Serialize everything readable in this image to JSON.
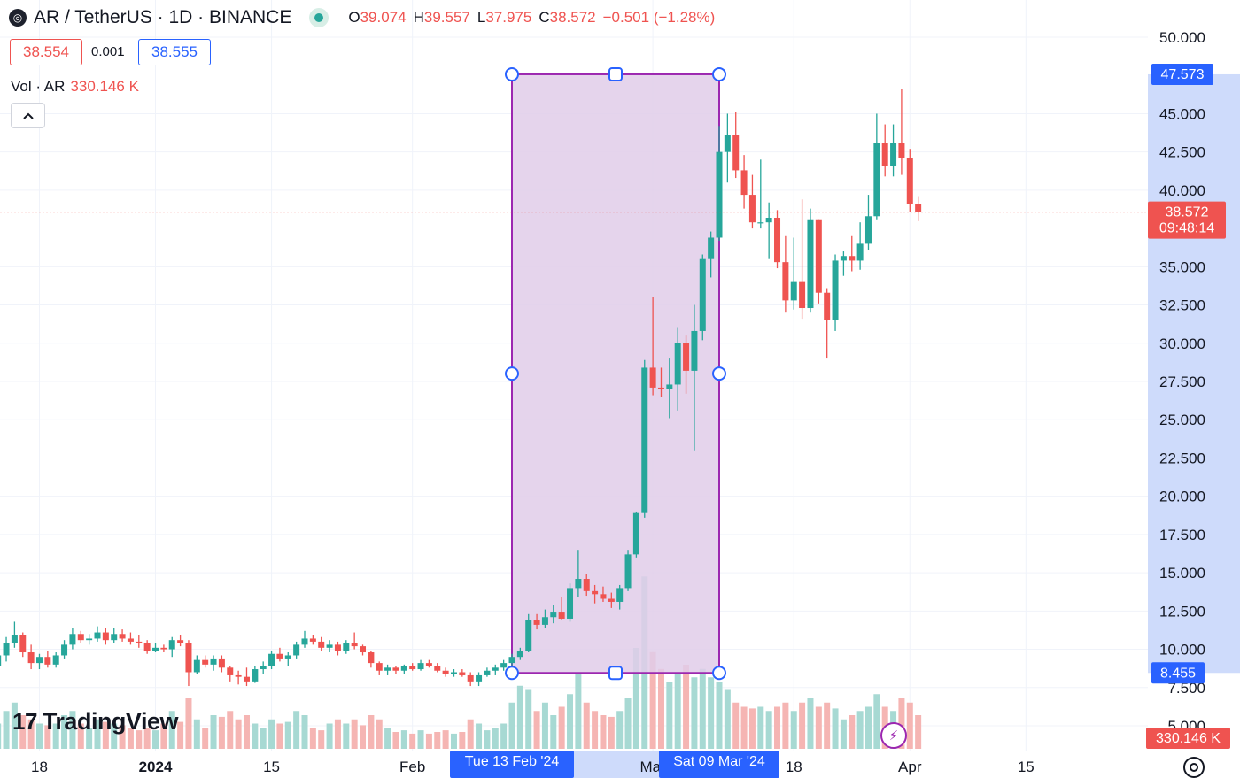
{
  "header": {
    "symbol": "AR / TetherUS · 1D · BINANCE",
    "open_label": "O",
    "open": "39.074",
    "high_label": "H",
    "high": "39.557",
    "low_label": "L",
    "low": "37.975",
    "close_label": "C",
    "close": "38.572",
    "change": "−0.501 (−1.28%)",
    "bid": "38.554",
    "spread": "0.001",
    "ask": "38.555",
    "volume_label": "Vol · AR",
    "volume_value": "330.146 K",
    "logo_icon": "exchange-logo-icon",
    "status_icon": "market-open-dot-icon",
    "collapse_icon": "chevron-up-icon"
  },
  "branding": {
    "name": "TradingView",
    "mark": "17"
  },
  "colors": {
    "up": "#26a69a",
    "down": "#ef5350",
    "up_volume": "#a7d9d3",
    "down_volume": "#f5b5b3",
    "range_fill": "#e1cce9",
    "range_border": "#9c27b0",
    "axis_highlight": "#c9d7fb",
    "label_blue": "#2962ff"
  },
  "chart_data": {
    "type": "candlestick",
    "symbol": "AR / TetherUS",
    "interval": "1D",
    "exchange": "BINANCE",
    "ylim": [
      5,
      52
    ],
    "y_ticks": [
      "50.000",
      "45.000",
      "42.500",
      "40.000",
      "35.000",
      "32.500",
      "30.000",
      "27.500",
      "25.000",
      "22.500",
      "20.000",
      "17.500",
      "15.000",
      "12.500",
      "10.000",
      "7.500",
      "5.000"
    ],
    "x_ticks": [
      "18",
      "2024",
      "15",
      "Feb",
      "Mar",
      "18",
      "Apr",
      "15"
    ],
    "x_tick_dates": [
      "2023-12-18",
      "2024-01-01",
      "2024-01-15",
      "2024-02-01",
      "2024-03-01",
      "2024-03-18",
      "2024-04-01",
      "2024-04-15"
    ],
    "last_price": {
      "value": 38.572,
      "label": "38.572",
      "countdown": "09:48:14"
    },
    "last_volume_label": "330.146 K",
    "date_range": {
      "start_label": "Tue 13 Feb '24",
      "end_label": "Sat 09 Mar '24",
      "start_date": "2024-02-13",
      "end_date": "2024-03-09",
      "high_label": "47.573",
      "low_label": "8.455",
      "high": 47.573,
      "low": 8.455
    },
    "candles": [
      {
        "d": "2023-12-13",
        "o": 8.9,
        "h": 9.9,
        "l": 8.4,
        "c": 9.6,
        "v": 30
      },
      {
        "d": "2023-12-14",
        "o": 9.6,
        "h": 10.8,
        "l": 9.2,
        "c": 10.4,
        "v": 45
      },
      {
        "d": "2023-12-15",
        "o": 10.4,
        "h": 11.8,
        "l": 10.1,
        "c": 10.9,
        "v": 55
      },
      {
        "d": "2023-12-16",
        "o": 10.9,
        "h": 11.1,
        "l": 9.5,
        "c": 9.8,
        "v": 40
      },
      {
        "d": "2023-12-17",
        "o": 9.8,
        "h": 10.3,
        "l": 8.7,
        "c": 9.1,
        "v": 35
      },
      {
        "d": "2023-12-18",
        "o": 9.1,
        "h": 9.7,
        "l": 8.7,
        "c": 9.5,
        "v": 30
      },
      {
        "d": "2023-12-19",
        "o": 9.5,
        "h": 9.9,
        "l": 8.8,
        "c": 9.0,
        "v": 28
      },
      {
        "d": "2023-12-20",
        "o": 9.0,
        "h": 9.8,
        "l": 8.8,
        "c": 9.6,
        "v": 30
      },
      {
        "d": "2023-12-21",
        "o": 9.6,
        "h": 10.6,
        "l": 9.4,
        "c": 10.3,
        "v": 40
      },
      {
        "d": "2023-12-22",
        "o": 10.3,
        "h": 11.4,
        "l": 10.0,
        "c": 11.0,
        "v": 45
      },
      {
        "d": "2023-12-23",
        "o": 11.0,
        "h": 11.2,
        "l": 10.4,
        "c": 10.6,
        "v": 30
      },
      {
        "d": "2023-12-24",
        "o": 10.6,
        "h": 11.0,
        "l": 10.3,
        "c": 10.7,
        "v": 25
      },
      {
        "d": "2023-12-25",
        "o": 10.7,
        "h": 11.5,
        "l": 10.5,
        "c": 11.1,
        "v": 35
      },
      {
        "d": "2023-12-26",
        "o": 11.1,
        "h": 11.4,
        "l": 10.3,
        "c": 10.6,
        "v": 32
      },
      {
        "d": "2023-12-27",
        "o": 10.6,
        "h": 11.4,
        "l": 10.4,
        "c": 11.0,
        "v": 30
      },
      {
        "d": "2023-12-28",
        "o": 11.0,
        "h": 11.3,
        "l": 10.5,
        "c": 10.7,
        "v": 28
      },
      {
        "d": "2023-12-29",
        "o": 10.7,
        "h": 11.1,
        "l": 10.3,
        "c": 10.5,
        "v": 25
      },
      {
        "d": "2023-12-30",
        "o": 10.5,
        "h": 10.9,
        "l": 10.1,
        "c": 10.4,
        "v": 22
      },
      {
        "d": "2023-12-31",
        "o": 10.4,
        "h": 10.6,
        "l": 9.7,
        "c": 9.9,
        "v": 25
      },
      {
        "d": "2024-01-01",
        "o": 9.9,
        "h": 10.4,
        "l": 9.8,
        "c": 10.1,
        "v": 22
      },
      {
        "d": "2024-01-02",
        "o": 10.1,
        "h": 10.3,
        "l": 9.8,
        "c": 10.0,
        "v": 30
      },
      {
        "d": "2024-01-03",
        "o": 10.0,
        "h": 10.8,
        "l": 9.5,
        "c": 10.6,
        "v": 45
      },
      {
        "d": "2024-01-04",
        "o": 10.6,
        "h": 10.9,
        "l": 10.2,
        "c": 10.4,
        "v": 32
      },
      {
        "d": "2024-01-05",
        "o": 10.4,
        "h": 10.6,
        "l": 7.6,
        "c": 8.5,
        "v": 60
      },
      {
        "d": "2024-01-06",
        "o": 8.5,
        "h": 9.6,
        "l": 8.4,
        "c": 9.3,
        "v": 35
      },
      {
        "d": "2024-01-07",
        "o": 9.3,
        "h": 9.6,
        "l": 8.8,
        "c": 9.0,
        "v": 25
      },
      {
        "d": "2024-01-08",
        "o": 9.0,
        "h": 9.6,
        "l": 8.6,
        "c": 9.4,
        "v": 40
      },
      {
        "d": "2024-01-09",
        "o": 9.4,
        "h": 9.6,
        "l": 8.5,
        "c": 8.8,
        "v": 38
      },
      {
        "d": "2024-01-10",
        "o": 8.8,
        "h": 8.9,
        "l": 7.9,
        "c": 8.3,
        "v": 45
      },
      {
        "d": "2024-01-11",
        "o": 8.3,
        "h": 8.6,
        "l": 7.7,
        "c": 8.2,
        "v": 35
      },
      {
        "d": "2024-01-12",
        "o": 8.2,
        "h": 8.8,
        "l": 7.6,
        "c": 7.9,
        "v": 40
      },
      {
        "d": "2024-01-13",
        "o": 7.9,
        "h": 8.9,
        "l": 7.8,
        "c": 8.7,
        "v": 30
      },
      {
        "d": "2024-01-14",
        "o": 8.7,
        "h": 9.2,
        "l": 8.4,
        "c": 8.9,
        "v": 25
      },
      {
        "d": "2024-01-15",
        "o": 8.9,
        "h": 9.9,
        "l": 8.7,
        "c": 9.7,
        "v": 35
      },
      {
        "d": "2024-01-16",
        "o": 9.7,
        "h": 10.1,
        "l": 9.2,
        "c": 9.4,
        "v": 30
      },
      {
        "d": "2024-01-17",
        "o": 9.4,
        "h": 9.8,
        "l": 8.9,
        "c": 9.6,
        "v": 32
      },
      {
        "d": "2024-01-18",
        "o": 9.6,
        "h": 10.5,
        "l": 9.4,
        "c": 10.3,
        "v": 45
      },
      {
        "d": "2024-01-19",
        "o": 10.3,
        "h": 11.2,
        "l": 10.1,
        "c": 10.7,
        "v": 40
      },
      {
        "d": "2024-01-20",
        "o": 10.7,
        "h": 10.9,
        "l": 10.3,
        "c": 10.5,
        "v": 25
      },
      {
        "d": "2024-01-21",
        "o": 10.5,
        "h": 10.8,
        "l": 9.9,
        "c": 10.1,
        "v": 22
      },
      {
        "d": "2024-01-22",
        "o": 10.1,
        "h": 10.6,
        "l": 9.8,
        "c": 10.3,
        "v": 30
      },
      {
        "d": "2024-01-23",
        "o": 10.3,
        "h": 10.5,
        "l": 9.6,
        "c": 9.9,
        "v": 35
      },
      {
        "d": "2024-01-24",
        "o": 9.9,
        "h": 10.6,
        "l": 9.7,
        "c": 10.4,
        "v": 30
      },
      {
        "d": "2024-01-25",
        "o": 10.4,
        "h": 11.1,
        "l": 10.0,
        "c": 10.2,
        "v": 35
      },
      {
        "d": "2024-01-26",
        "o": 10.2,
        "h": 10.3,
        "l": 9.6,
        "c": 9.8,
        "v": 28
      },
      {
        "d": "2024-01-27",
        "o": 9.8,
        "h": 9.9,
        "l": 8.8,
        "c": 9.1,
        "v": 40
      },
      {
        "d": "2024-01-28",
        "o": 9.1,
        "h": 9.2,
        "l": 8.3,
        "c": 8.6,
        "v": 35
      },
      {
        "d": "2024-01-29",
        "o": 8.6,
        "h": 9.0,
        "l": 8.3,
        "c": 8.8,
        "v": 25
      },
      {
        "d": "2024-01-30",
        "o": 8.8,
        "h": 8.9,
        "l": 8.4,
        "c": 8.6,
        "v": 20
      },
      {
        "d": "2024-01-31",
        "o": 8.6,
        "h": 9.0,
        "l": 8.4,
        "c": 8.9,
        "v": 22
      },
      {
        "d": "2024-02-01",
        "o": 8.9,
        "h": 9.1,
        "l": 8.6,
        "c": 8.7,
        "v": 18
      },
      {
        "d": "2024-02-02",
        "o": 8.7,
        "h": 9.3,
        "l": 8.6,
        "c": 9.1,
        "v": 22
      },
      {
        "d": "2024-02-03",
        "o": 9.1,
        "h": 9.3,
        "l": 8.8,
        "c": 8.9,
        "v": 18
      },
      {
        "d": "2024-02-04",
        "o": 8.9,
        "h": 9.1,
        "l": 8.5,
        "c": 8.6,
        "v": 20
      },
      {
        "d": "2024-02-05",
        "o": 8.6,
        "h": 8.8,
        "l": 8.2,
        "c": 8.4,
        "v": 22
      },
      {
        "d": "2024-02-06",
        "o": 8.4,
        "h": 8.7,
        "l": 8.2,
        "c": 8.5,
        "v": 18
      },
      {
        "d": "2024-02-07",
        "o": 8.5,
        "h": 8.7,
        "l": 8.2,
        "c": 8.3,
        "v": 20
      },
      {
        "d": "2024-02-08",
        "o": 8.3,
        "h": 8.5,
        "l": 7.6,
        "c": 7.9,
        "v": 35
      },
      {
        "d": "2024-02-09",
        "o": 7.9,
        "h": 8.5,
        "l": 7.6,
        "c": 8.3,
        "v": 30
      },
      {
        "d": "2024-02-10",
        "o": 8.3,
        "h": 8.8,
        "l": 8.2,
        "c": 8.6,
        "v": 22
      },
      {
        "d": "2024-02-11",
        "o": 8.6,
        "h": 9.0,
        "l": 8.3,
        "c": 8.8,
        "v": 25
      },
      {
        "d": "2024-02-12",
        "o": 8.8,
        "h": 9.3,
        "l": 8.6,
        "c": 9.1,
        "v": 30
      },
      {
        "d": "2024-02-13",
        "o": 9.1,
        "h": 9.7,
        "l": 8.8,
        "c": 9.5,
        "v": 55
      },
      {
        "d": "2024-02-14",
        "o": 9.5,
        "h": 10.1,
        "l": 9.3,
        "c": 9.9,
        "v": 75
      },
      {
        "d": "2024-02-15",
        "o": 9.9,
        "h": 12.3,
        "l": 9.8,
        "c": 11.9,
        "v": 70
      },
      {
        "d": "2024-02-16",
        "o": 11.9,
        "h": 12.3,
        "l": 11.3,
        "c": 11.6,
        "v": 45
      },
      {
        "d": "2024-02-17",
        "o": 11.6,
        "h": 12.6,
        "l": 11.4,
        "c": 12.1,
        "v": 55
      },
      {
        "d": "2024-02-18",
        "o": 12.1,
        "h": 12.9,
        "l": 11.7,
        "c": 12.4,
        "v": 40
      },
      {
        "d": "2024-02-19",
        "o": 12.4,
        "h": 13.4,
        "l": 11.9,
        "c": 12.0,
        "v": 50
      },
      {
        "d": "2024-02-20",
        "o": 12.0,
        "h": 14.3,
        "l": 11.8,
        "c": 14.0,
        "v": 65
      },
      {
        "d": "2024-02-21",
        "o": 14.0,
        "h": 16.5,
        "l": 13.4,
        "c": 14.6,
        "v": 90
      },
      {
        "d": "2024-02-22",
        "o": 14.6,
        "h": 14.9,
        "l": 13.5,
        "c": 13.8,
        "v": 55
      },
      {
        "d": "2024-02-23",
        "o": 13.8,
        "h": 14.2,
        "l": 13.0,
        "c": 13.6,
        "v": 45
      },
      {
        "d": "2024-02-24",
        "o": 13.6,
        "h": 14.1,
        "l": 13.1,
        "c": 13.3,
        "v": 40
      },
      {
        "d": "2024-02-25",
        "o": 13.3,
        "h": 13.7,
        "l": 12.7,
        "c": 13.1,
        "v": 38
      },
      {
        "d": "2024-02-26",
        "o": 13.1,
        "h": 14.2,
        "l": 12.6,
        "c": 14.0,
        "v": 45
      },
      {
        "d": "2024-02-27",
        "o": 14.0,
        "h": 16.5,
        "l": 13.8,
        "c": 16.2,
        "v": 60
      },
      {
        "d": "2024-02-28",
        "o": 16.2,
        "h": 19.0,
        "l": 16.0,
        "c": 18.9,
        "v": 120
      },
      {
        "d": "2024-02-29",
        "o": 18.9,
        "h": 28.9,
        "l": 18.6,
        "c": 28.4,
        "v": 205
      },
      {
        "d": "2024-03-01",
        "o": 28.4,
        "h": 33.0,
        "l": 26.6,
        "c": 27.1,
        "v": 115
      },
      {
        "d": "2024-03-02",
        "o": 27.1,
        "h": 28.4,
        "l": 26.5,
        "c": 27.0,
        "v": 95
      },
      {
        "d": "2024-03-03",
        "o": 27.0,
        "h": 29.0,
        "l": 25.1,
        "c": 27.3,
        "v": 80
      },
      {
        "d": "2024-03-04",
        "o": 27.3,
        "h": 31.0,
        "l": 25.6,
        "c": 30.0,
        "v": 90
      },
      {
        "d": "2024-03-05",
        "o": 30.0,
        "h": 30.5,
        "l": 26.7,
        "c": 28.2,
        "v": 100
      },
      {
        "d": "2024-03-06",
        "o": 28.2,
        "h": 32.5,
        "l": 23.0,
        "c": 30.8,
        "v": 85
      },
      {
        "d": "2024-03-07",
        "o": 30.8,
        "h": 35.8,
        "l": 30.2,
        "c": 35.5,
        "v": 95
      },
      {
        "d": "2024-03-08",
        "o": 35.5,
        "h": 37.3,
        "l": 34.3,
        "c": 36.9,
        "v": 85
      },
      {
        "d": "2024-03-09",
        "o": 36.9,
        "h": 44.2,
        "l": 36.7,
        "c": 42.5,
        "v": 80
      },
      {
        "d": "2024-03-10",
        "o": 42.5,
        "h": 45.0,
        "l": 40.5,
        "c": 43.6,
        "v": 70
      },
      {
        "d": "2024-03-11",
        "o": 43.6,
        "h": 45.1,
        "l": 40.8,
        "c": 41.3,
        "v": 55
      },
      {
        "d": "2024-03-12",
        "o": 41.3,
        "h": 42.3,
        "l": 38.8,
        "c": 39.7,
        "v": 50
      },
      {
        "d": "2024-03-13",
        "o": 39.7,
        "h": 41.0,
        "l": 37.5,
        "c": 37.9,
        "v": 48
      },
      {
        "d": "2024-03-14",
        "o": 37.9,
        "h": 42.0,
        "l": 37.5,
        "c": 37.9,
        "v": 50
      },
      {
        "d": "2024-03-15",
        "o": 37.9,
        "h": 39.2,
        "l": 35.5,
        "c": 38.2,
        "v": 45
      },
      {
        "d": "2024-03-16",
        "o": 38.2,
        "h": 38.7,
        "l": 34.9,
        "c": 35.3,
        "v": 50
      },
      {
        "d": "2024-03-17",
        "o": 35.3,
        "h": 37.0,
        "l": 32.0,
        "c": 32.8,
        "v": 55
      },
      {
        "d": "2024-03-18",
        "o": 32.8,
        "h": 36.9,
        "l": 32.2,
        "c": 34.0,
        "v": 45
      },
      {
        "d": "2024-03-19",
        "o": 34.0,
        "h": 39.4,
        "l": 31.6,
        "c": 32.3,
        "v": 55
      },
      {
        "d": "2024-03-20",
        "o": 32.3,
        "h": 38.8,
        "l": 32.0,
        "c": 38.1,
        "v": 60
      },
      {
        "d": "2024-03-21",
        "o": 38.1,
        "h": 38.1,
        "l": 32.6,
        "c": 33.3,
        "v": 50
      },
      {
        "d": "2024-03-22",
        "o": 33.3,
        "h": 33.6,
        "l": 29.0,
        "c": 31.5,
        "v": 55
      },
      {
        "d": "2024-03-23",
        "o": 31.5,
        "h": 35.8,
        "l": 30.8,
        "c": 35.4,
        "v": 48
      },
      {
        "d": "2024-03-24",
        "o": 35.4,
        "h": 36.0,
        "l": 34.4,
        "c": 35.7,
        "v": 35
      },
      {
        "d": "2024-03-25",
        "o": 35.7,
        "h": 37.0,
        "l": 34.7,
        "c": 35.4,
        "v": 40
      },
      {
        "d": "2024-03-26",
        "o": 35.4,
        "h": 37.9,
        "l": 34.8,
        "c": 36.5,
        "v": 45
      },
      {
        "d": "2024-03-27",
        "o": 36.5,
        "h": 39.7,
        "l": 36.1,
        "c": 38.3,
        "v": 50
      },
      {
        "d": "2024-03-28",
        "o": 38.3,
        "h": 45.0,
        "l": 38.1,
        "c": 43.1,
        "v": 65
      },
      {
        "d": "2024-03-29",
        "o": 43.1,
        "h": 44.3,
        "l": 40.9,
        "c": 41.6,
        "v": 50
      },
      {
        "d": "2024-03-30",
        "o": 41.6,
        "h": 44.3,
        "l": 40.9,
        "c": 43.1,
        "v": 45
      },
      {
        "d": "2024-03-31",
        "o": 43.1,
        "h": 46.6,
        "l": 41.0,
        "c": 42.1,
        "v": 60
      },
      {
        "d": "2024-04-01",
        "o": 42.1,
        "h": 42.7,
        "l": 38.6,
        "c": 39.1,
        "v": 55
      },
      {
        "d": "2024-04-02",
        "o": 39.074,
        "h": 39.557,
        "l": 37.975,
        "c": 38.572,
        "v": 40
      }
    ]
  }
}
